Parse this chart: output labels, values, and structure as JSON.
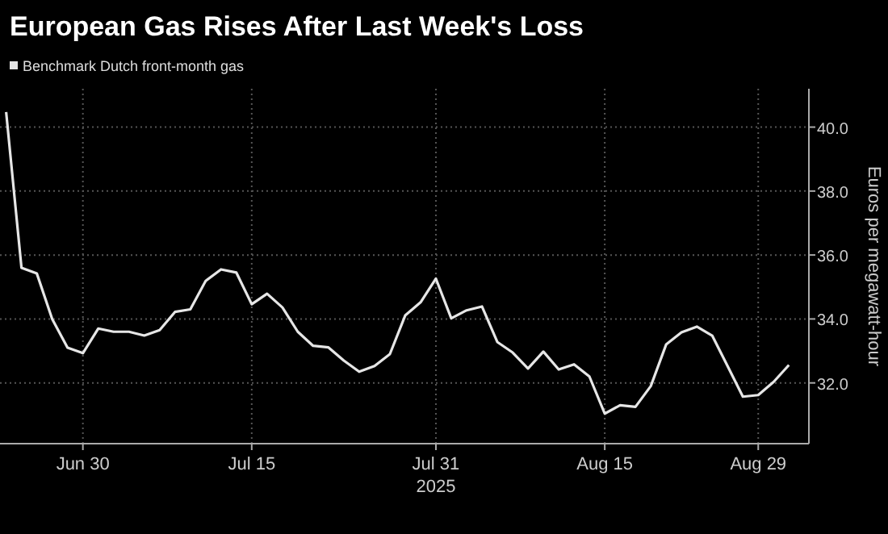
{
  "chart_data": {
    "type": "line",
    "title": "European Gas Rises After Last Week's Loss",
    "xlabel": "2025",
    "ylabel": "Euros per megawatt-hour",
    "categories": [
      null,
      null,
      null,
      null,
      null,
      "Jun 30",
      null,
      null,
      null,
      null,
      null,
      null,
      null,
      null,
      null,
      null,
      "Jul 15",
      null,
      null,
      null,
      null,
      null,
      null,
      null,
      null,
      null,
      null,
      null,
      "Jul 31",
      null,
      null,
      null,
      null,
      null,
      null,
      null,
      null,
      null,
      null,
      "Aug 15",
      null,
      null,
      null,
      null,
      null,
      null,
      null,
      null,
      null,
      "Aug 29",
      null,
      null
    ],
    "series": [
      {
        "name": "Benchmark Dutch front-month gas",
        "color": "#e6e6e6",
        "values": [
          40.47,
          35.6,
          35.42,
          34.0,
          33.1,
          32.93,
          33.7,
          33.6,
          33.6,
          33.48,
          33.65,
          34.22,
          34.3,
          35.19,
          35.55,
          35.45,
          34.46,
          34.79,
          34.36,
          33.6,
          33.16,
          33.11,
          32.7,
          32.35,
          32.53,
          32.9,
          34.11,
          34.52,
          35.26,
          34.02,
          34.27,
          34.39,
          33.28,
          32.95,
          32.45,
          32.98,
          32.42,
          32.58,
          32.2,
          31.04,
          31.3,
          31.25,
          31.9,
          33.2,
          33.58,
          33.76,
          33.48,
          32.53,
          31.57,
          31.62,
          32.03,
          32.56
        ]
      }
    ],
    "ylim": [
      30.1,
      41.2
    ],
    "yticks": [
      {
        "value": 32,
        "label": "32.0"
      },
      {
        "value": 34,
        "label": "34.0"
      },
      {
        "value": 36,
        "label": "36.0"
      },
      {
        "value": 38,
        "label": "38.0"
      },
      {
        "value": 40,
        "label": "40.0"
      }
    ],
    "grid": true,
    "legend": "top left",
    "marker": "none",
    "line_style": "solid"
  }
}
